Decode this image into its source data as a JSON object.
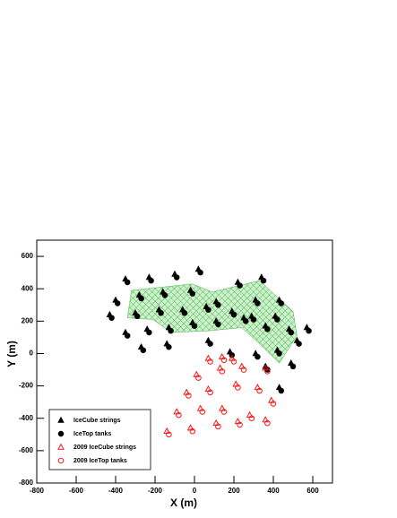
{
  "chart_data": {
    "type": "scatter",
    "xlabel": "X (m)",
    "ylabel": "Y (m)",
    "xlim": [
      -800,
      700
    ],
    "ylim": [
      -800,
      700
    ],
    "xticks": [
      -800,
      -600,
      -400,
      -200,
      0,
      200,
      400,
      600
    ],
    "yticks": [
      -800,
      -600,
      -400,
      -200,
      0,
      200,
      400,
      600
    ],
    "legend": "lower left",
    "region": {
      "color": "#33cc33",
      "x": [
        -320,
        -10,
        90,
        330,
        500,
        520,
        430,
        330,
        240,
        70,
        -120,
        -210,
        -340
      ],
      "y": [
        390,
        430,
        380,
        450,
        260,
        110,
        -60,
        60,
        160,
        140,
        130,
        210,
        220
      ]
    },
    "series": [
      {
        "name": "IceCube strings",
        "color": "#000000",
        "marker": "triangle",
        "filled": true,
        "x": [
          -350,
          -230,
          -100,
          20,
          220,
          340,
          -400,
          -280,
          -160,
          -20,
          110,
          310,
          430,
          -430,
          -300,
          -180,
          -60,
          60,
          190,
          290,
          410,
          -350,
          -240,
          -130,
          -10,
          110,
          250,
          360,
          480,
          570,
          -270,
          -140,
          70,
          180,
          310,
          420,
          520,
          360,
          490,
          430
        ],
        "y": [
          460,
          470,
          490,
          520,
          440,
          470,
          330,
          360,
          380,
          390,
          320,
          330,
          330,
          240,
          250,
          270,
          270,
          290,
          260,
          230,
          230,
          130,
          150,
          160,
          190,
          200,
          220,
          170,
          150,
          160,
          40,
          60,
          80,
          10,
          0,
          20,
          80,
          -80,
          -60,
          -210
        ]
      },
      {
        "name": "IceTop tanks",
        "color": "#000000",
        "marker": "circle",
        "filled": true,
        "x": [
          -340,
          -220,
          -90,
          30,
          230,
          350,
          -390,
          -270,
          -150,
          -10,
          120,
          320,
          440,
          -420,
          -290,
          -170,
          -50,
          70,
          200,
          300,
          420,
          -340,
          -230,
          -120,
          0,
          120,
          260,
          370,
          490,
          580,
          -260,
          -130,
          80,
          190,
          320,
          430,
          530,
          370,
          500,
          440
        ],
        "y": [
          440,
          450,
          470,
          500,
          420,
          450,
          310,
          340,
          360,
          370,
          300,
          310,
          310,
          220,
          230,
          250,
          250,
          270,
          240,
          210,
          210,
          110,
          130,
          140,
          170,
          180,
          200,
          150,
          130,
          140,
          20,
          40,
          60,
          -10,
          -20,
          0,
          60,
          -100,
          -80,
          -230
        ]
      },
      {
        "name": "2009 IceCube strings",
        "color": "#ff0000",
        "marker": "triangle",
        "filled": false,
        "x": [
          -140,
          -20,
          110,
          220,
          360,
          -90,
          30,
          140,
          280,
          390,
          -40,
          70,
          210,
          320,
          10,
          130,
          240,
          360,
          70,
          140,
          190
        ],
        "y": [
          -480,
          -460,
          -430,
          -420,
          -410,
          -360,
          -340,
          -340,
          -380,
          -290,
          -240,
          -220,
          -190,
          -210,
          -130,
          -90,
          -80,
          -90,
          -30,
          -20,
          -30
        ]
      },
      {
        "name": "2009 IceTop tanks",
        "color": "#ff0000",
        "marker": "circle",
        "filled": false,
        "x": [
          -130,
          -10,
          120,
          230,
          370,
          -80,
          40,
          150,
          290,
          400,
          -30,
          80,
          220,
          330,
          20,
          140,
          250,
          370,
          80,
          150,
          200
        ],
        "y": [
          -500,
          -480,
          -450,
          -440,
          -430,
          -380,
          -360,
          -360,
          -400,
          -310,
          -260,
          -240,
          -210,
          -230,
          -150,
          -110,
          -100,
          -110,
          -50,
          -40,
          -50
        ]
      }
    ]
  }
}
